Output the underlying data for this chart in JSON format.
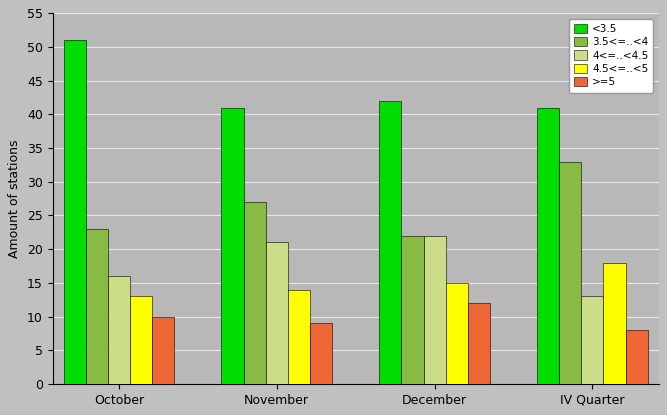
{
  "categories": [
    "October",
    "November",
    "December",
    "IV Quarter"
  ],
  "series": [
    {
      "label": "<3.5",
      "values": [
        51,
        41,
        42,
        41
      ],
      "color": "#00dd00"
    },
    {
      "label": "3.5<=..<4",
      "values": [
        23,
        27,
        22,
        33
      ],
      "color": "#88bb44"
    },
    {
      "label": "4<=..<4.5",
      "values": [
        16,
        21,
        22,
        13
      ],
      "color": "#ccdd88"
    },
    {
      "label": "4.5<=..<5",
      "values": [
        13,
        14,
        15,
        18
      ],
      "color": "#ffff00"
    },
    {
      "label": ">=5",
      "values": [
        10,
        9,
        12,
        8
      ],
      "color": "#ee6633"
    }
  ],
  "ylabel": "Amount of stations",
  "ylim": [
    0,
    55
  ],
  "yticks": [
    0,
    5,
    10,
    15,
    20,
    25,
    30,
    35,
    40,
    45,
    50,
    55
  ],
  "background_color": "#c0c0c0",
  "plot_bg_color": "#b8b8b8",
  "grid_color": "#e8e8e8",
  "bar_edge_color": "#000000",
  "bar_edge_width": 0.4,
  "legend_fontsize": 7.5,
  "axis_fontsize": 9,
  "tick_fontsize": 9,
  "bar_width": 0.14,
  "group_width": 1.0
}
